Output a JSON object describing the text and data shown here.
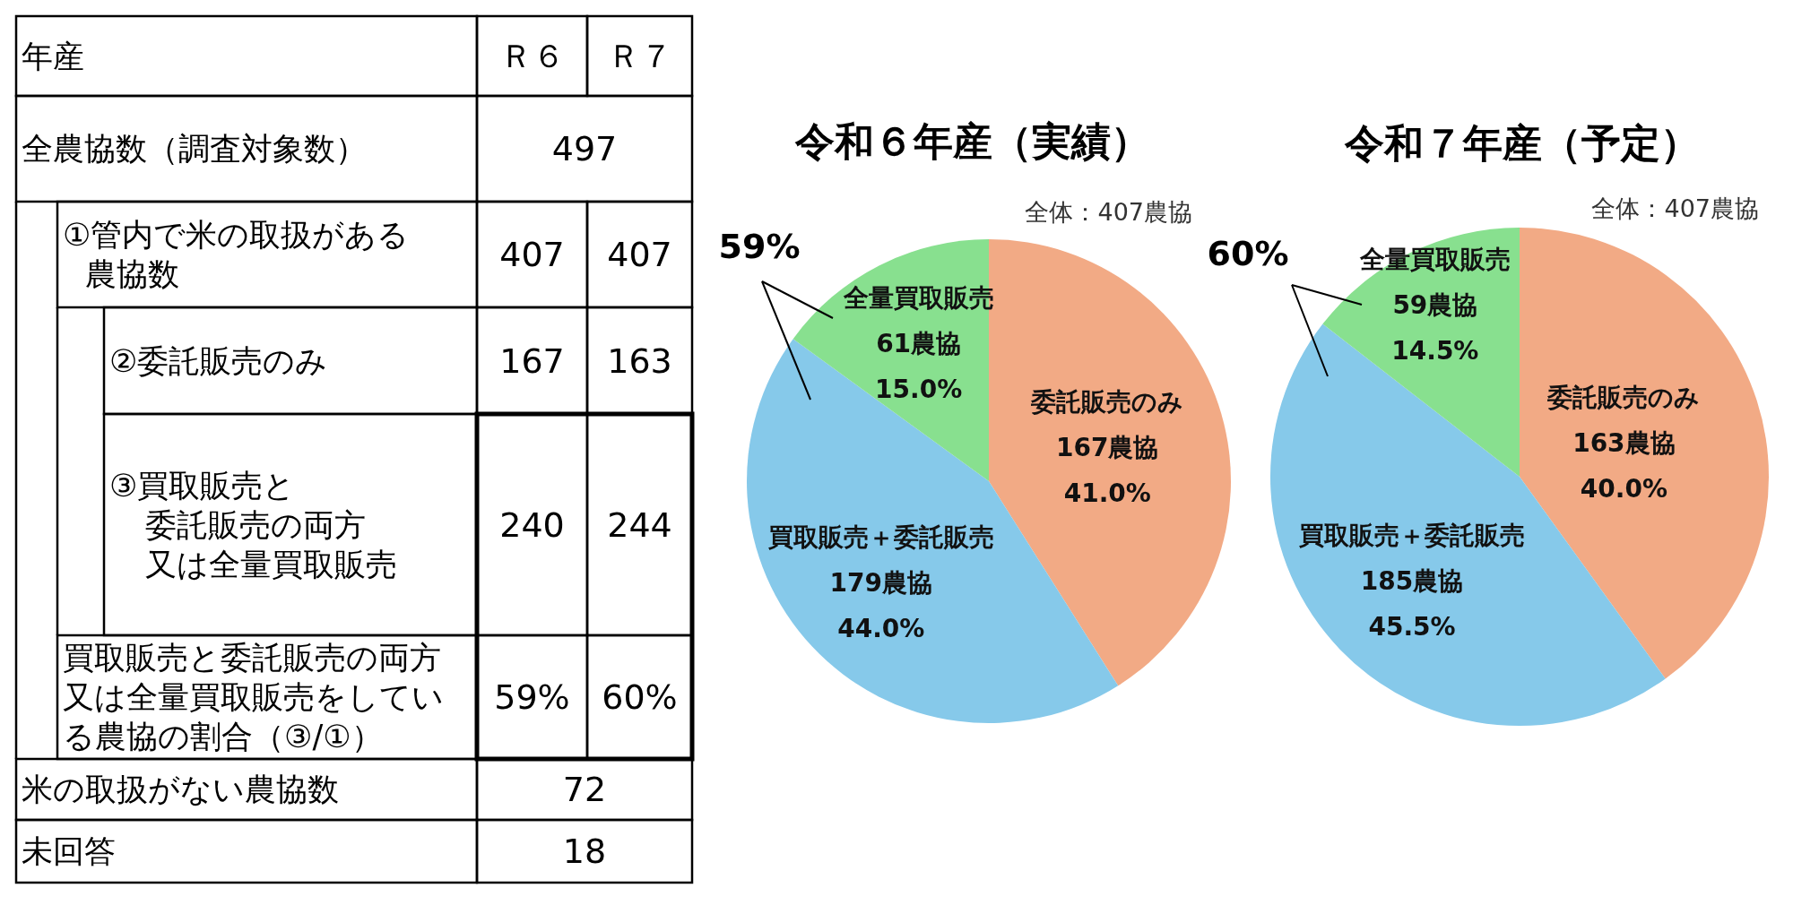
{
  "chart_data": [
    {
      "type": "other",
      "xlabel": "年産",
      "categories": [
        "Ｒ６",
        "Ｒ７"
      ],
      "y_categories": [
        "全農協数（調査対象数）",
        "①管内で米の取扱がある農協数",
        "②委託販売のみ",
        "③買取販売と委託販売の両方又は全量買取販売",
        "買取販売と委託販売の両方又は全量買取販売をしている農協の割合（③/①）",
        "米の取扱がない農協数",
        "未回答"
      ],
      "cell_labels": [
        [
          "497",
          null
        ],
        [
          "407",
          "407"
        ],
        [
          "167",
          "163"
        ],
        [
          "240",
          "244"
        ],
        [
          "59%",
          "60%"
        ],
        [
          "72",
          null
        ],
        [
          "18",
          null
        ]
      ]
    },
    {
      "type": "pie",
      "title": "令和６年産（実績）",
      "categories": [
        "委託販売のみ",
        "買取販売＋委託販売",
        "全量買取販売"
      ],
      "values": [
        167,
        179,
        61
      ],
      "colors": [
        "#f2aa85",
        "#86c9ea",
        "#88e08f"
      ],
      "value_labels": [
        "167農協\n41.0%",
        "179農協\n44.0%",
        "61農協\n15.0%"
      ],
      "annotations": [
        "全体：407農協",
        "59%"
      ]
    },
    {
      "type": "pie",
      "title": "令和７年産（予定）",
      "categories": [
        "委託販売のみ",
        "買取販売＋委託販売",
        "全量買取販売"
      ],
      "values": [
        163,
        185,
        59
      ],
      "colors": [
        "#f2aa85",
        "#86c9ea",
        "#88e08f"
      ],
      "value_labels": [
        "163農協\n40.0%",
        "185農協\n45.5%",
        "59農協\n14.5%"
      ],
      "annotations": [
        "全体：407農協",
        "60%"
      ]
    }
  ]
}
